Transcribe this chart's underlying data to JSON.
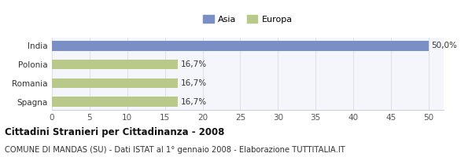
{
  "categories": [
    "Spagna",
    "Romania",
    "Polonia",
    "India"
  ],
  "values": [
    16.7,
    16.7,
    16.7,
    50.0
  ],
  "bar_colors": [
    "#b8c98a",
    "#b8c98a",
    "#b8c98a",
    "#7b8fc7"
  ],
  "legend_labels": [
    "Asia",
    "Europa"
  ],
  "legend_colors": [
    "#7b8fc7",
    "#b8c98a"
  ],
  "value_labels": [
    "16,7%",
    "16,7%",
    "16,7%",
    "50,0%"
  ],
  "xlim": [
    0,
    52
  ],
  "xticks": [
    0,
    5,
    10,
    15,
    20,
    25,
    30,
    35,
    40,
    45,
    50
  ],
  "title": "Cittadini Stranieri per Cittadinanza - 2008",
  "subtitle": "COMUNE DI MANDAS (SU) - Dati ISTAT al 1° gennaio 2008 - Elaborazione TUTTITALIA.IT",
  "background_color": "#ffffff",
  "plot_bg_color": "#f4f6fb",
  "title_fontsize": 8.5,
  "subtitle_fontsize": 7.2,
  "label_fontsize": 7.5,
  "tick_fontsize": 7.5,
  "legend_fontsize": 8.0,
  "bar_height": 0.52
}
